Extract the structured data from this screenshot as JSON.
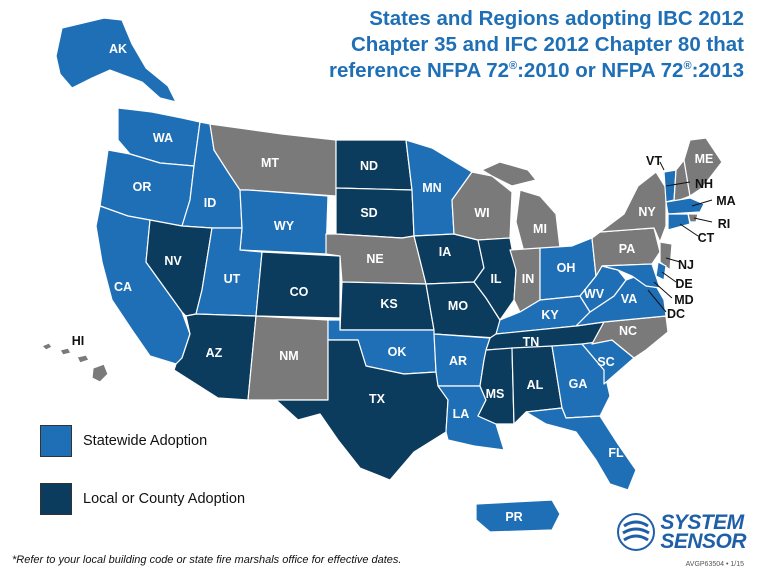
{
  "title": {
    "line1": "States and Regions adopting IBC 2012",
    "line2": "Chapter 35 and IFC 2012 Chapter 80 that",
    "line3a": "reference NFPA 72",
    "reg": "®",
    "line3b": ":2010 or NFPA 72",
    "line3c": ":2013"
  },
  "colors": {
    "statewide": "#1f6fb6",
    "local": "#0b3c5d",
    "none": "#7a7a7a",
    "border": "#ffffff"
  },
  "legend": {
    "statewide": "Statewide Adoption",
    "local": "Local or County Adoption"
  },
  "states": {
    "AK": "AK",
    "HI": "HI",
    "WA": "WA",
    "OR": "OR",
    "CA": "CA",
    "ID": "ID",
    "NV": "NV",
    "MT": "MT",
    "WY": "WY",
    "UT": "UT",
    "AZ": "AZ",
    "CO": "CO",
    "NM": "NM",
    "ND": "ND",
    "SD": "SD",
    "NE": "NE",
    "KS": "KS",
    "OK": "OK",
    "TX": "TX",
    "MN": "MN",
    "IA": "IA",
    "MO": "MO",
    "AR": "AR",
    "LA": "LA",
    "WI": "WI",
    "IL": "IL",
    "MI": "MI",
    "IN": "IN",
    "OH": "OH",
    "KY": "KY",
    "TN": "TN",
    "MS": "MS",
    "AL": "AL",
    "GA": "GA",
    "FL": "FL",
    "SC": "SC",
    "NC": "NC",
    "VA": "VA",
    "WV": "WV",
    "PA": "PA",
    "NY": "NY",
    "VT": "VT",
    "NH": "NH",
    "ME": "ME",
    "MA": "MA",
    "RI": "RI",
    "CT": "CT",
    "NJ": "NJ",
    "DE": "DE",
    "MD": "MD",
    "DC": "DC",
    "PR": "PR"
  },
  "footnote": "*Refer to your local building code or state fire marshals office for effective dates.",
  "logo": {
    "line1": "SYSTEM",
    "line2": "SENSOR"
  },
  "doc_code": "AVGP63504 • 1/15"
}
